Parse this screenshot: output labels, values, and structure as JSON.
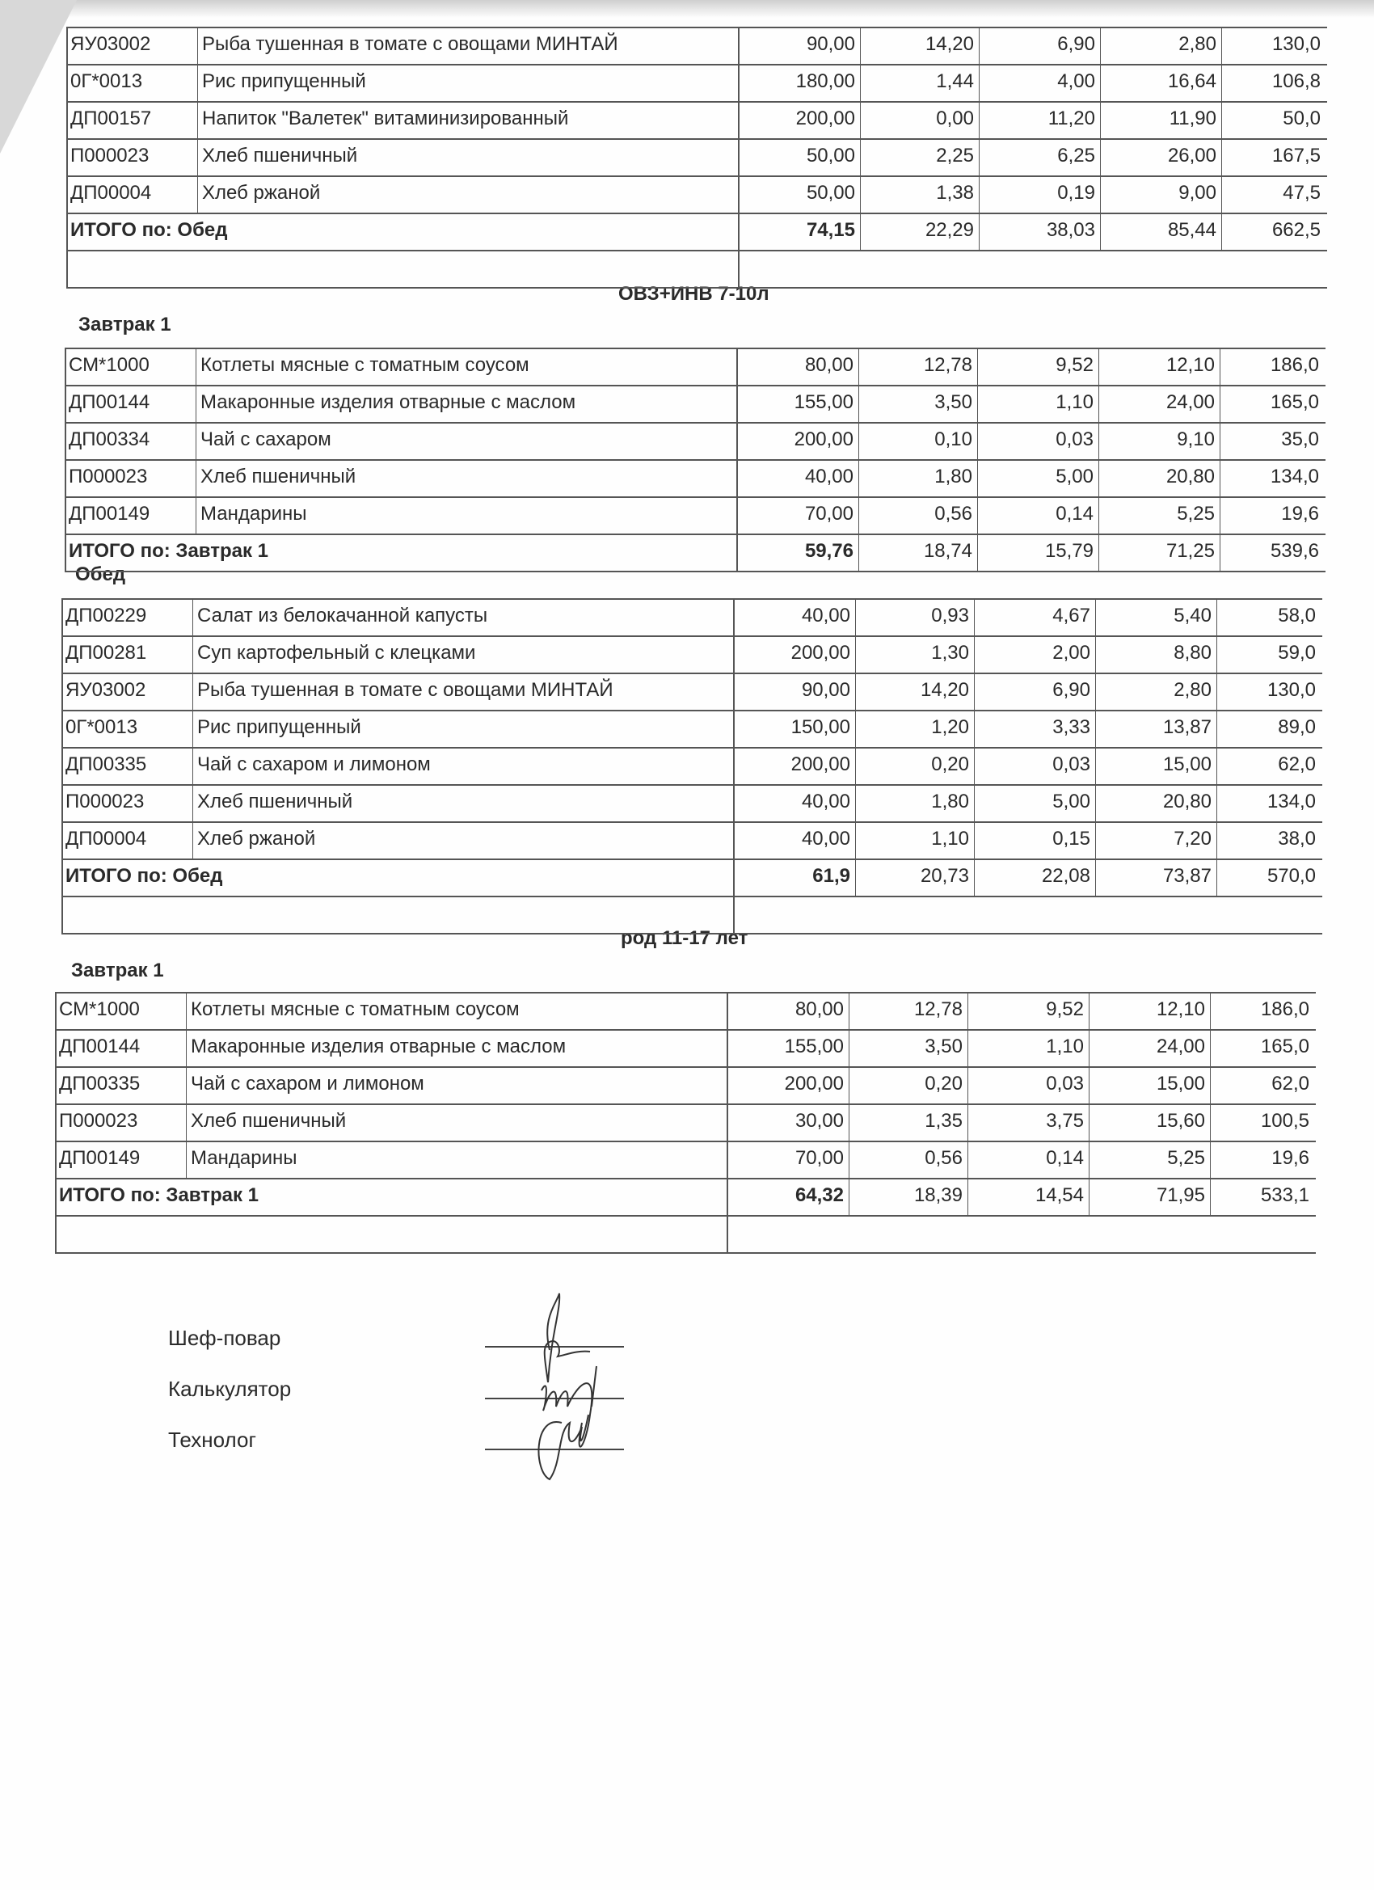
{
  "sections": [
    {
      "id": "t0",
      "rows": [
        {
          "code": "ЯУ03002",
          "name": "Рыба тушенная  в томате с овощами МИНТАЙ",
          "w": "90,00",
          "v1": "14,20",
          "v2": "6,90",
          "v3": "2,80",
          "v4": "130,0"
        },
        {
          "code": "0Г*0013",
          "name": "Рис припущенный",
          "w": "180,00",
          "v1": "1,44",
          "v2": "4,00",
          "v3": "16,64",
          "v4": "106,8"
        },
        {
          "code": "ДП00157",
          "name": "Напиток \"Валетек\" витаминизированный",
          "w": "200,00",
          "v1": "0,00",
          "v2": "11,20",
          "v3": "11,90",
          "v4": "50,0"
        },
        {
          "code": "П000023",
          "name": "Хлеб пшеничный",
          "w": "50,00",
          "v1": "2,25",
          "v2": "6,25",
          "v3": "26,00",
          "v4": "167,5"
        },
        {
          "code": "ДП00004",
          "name": "Хлеб ржаной",
          "w": "50,00",
          "v1": "1,38",
          "v2": "0,19",
          "v3": "9,00",
          "v4": "47,5"
        }
      ],
      "total": {
        "label": "ИТОГО по: Обед",
        "w": "74,15",
        "v1": "22,29",
        "v2": "38,03",
        "v3": "85,44",
        "v4": "662,5"
      },
      "empty_row": true
    },
    {
      "id": "t1",
      "group_title": "ОВЗ+ИНВ 7-10л",
      "meal_title": "Завтрак 1",
      "rows": [
        {
          "code": "СМ*1000",
          "name": "Котлеты мясные с томатным соусом",
          "w": "80,00",
          "v1": "12,78",
          "v2": "9,52",
          "v3": "12,10",
          "v4": "186,0"
        },
        {
          "code": "ДП00144",
          "name": "Макаронные изделия отварные с маслом",
          "w": "155,00",
          "v1": "3,50",
          "v2": "1,10",
          "v3": "24,00",
          "v4": "165,0"
        },
        {
          "code": "ДП00334",
          "name": "Чай с сахаром",
          "w": "200,00",
          "v1": "0,10",
          "v2": "0,03",
          "v3": "9,10",
          "v4": "35,0"
        },
        {
          "code": "П000023",
          "name": "Хлеб пшеничный",
          "w": "40,00",
          "v1": "1,80",
          "v2": "5,00",
          "v3": "20,80",
          "v4": "134,0"
        },
        {
          "code": "ДП00149",
          "name": "Мандарины",
          "w": "70,00",
          "v1": "0,56",
          "v2": "0,14",
          "v3": "5,25",
          "v4": "19,6"
        }
      ],
      "total": {
        "label": "ИТОГО по: Завтрак 1",
        "w": "59,76",
        "v1": "18,74",
        "v2": "15,79",
        "v3": "71,25",
        "v4": "539,6"
      },
      "empty_row": false
    },
    {
      "id": "t2",
      "meal_title": "Обед",
      "rows": [
        {
          "code": "ДП00229",
          "name": "Салат из белокачанной капусты",
          "w": "40,00",
          "v1": "0,93",
          "v2": "4,67",
          "v3": "5,40",
          "v4": "58,0"
        },
        {
          "code": "ДП00281",
          "name": "Суп картофельный с клецками",
          "w": "200,00",
          "v1": "1,30",
          "v2": "2,00",
          "v3": "8,80",
          "v4": "59,0"
        },
        {
          "code": "ЯУ03002",
          "name": "Рыба тушенная  в томате с овощами МИНТАЙ",
          "w": "90,00",
          "v1": "14,20",
          "v2": "6,90",
          "v3": "2,80",
          "v4": "130,0"
        },
        {
          "code": "0Г*0013",
          "name": "Рис припущенный",
          "w": "150,00",
          "v1": "1,20",
          "v2": "3,33",
          "v3": "13,87",
          "v4": "89,0"
        },
        {
          "code": "ДП00335",
          "name": "Чай с сахаром и  лимоном",
          "w": "200,00",
          "v1": "0,20",
          "v2": "0,03",
          "v3": "15,00",
          "v4": "62,0"
        },
        {
          "code": "П000023",
          "name": "Хлеб пшеничный",
          "w": "40,00",
          "v1": "1,80",
          "v2": "5,00",
          "v3": "20,80",
          "v4": "134,0"
        },
        {
          "code": "ДП00004",
          "name": "Хлеб ржаной",
          "w": "40,00",
          "v1": "1,10",
          "v2": "0,15",
          "v3": "7,20",
          "v4": "38,0"
        }
      ],
      "total": {
        "label": "ИТОГО по: Обед",
        "w": "61,9",
        "v1": "20,73",
        "v2": "22,08",
        "v3": "73,87",
        "v4": "570,0"
      },
      "empty_row": true
    },
    {
      "id": "t3",
      "group_title": "род 11-17 лет",
      "meal_title": "Завтрак 1",
      "rows": [
        {
          "code": "СМ*1000",
          "name": "Котлеты мясные с томатным соусом",
          "w": "80,00",
          "v1": "12,78",
          "v2": "9,52",
          "v3": "12,10",
          "v4": "186,0"
        },
        {
          "code": "ДП00144",
          "name": "Макаронные изделия отварные с маслом",
          "w": "155,00",
          "v1": "3,50",
          "v2": "1,10",
          "v3": "24,00",
          "v4": "165,0"
        },
        {
          "code": "ДП00335",
          "name": "Чай с сахаром и  лимоном",
          "w": "200,00",
          "v1": "0,20",
          "v2": "0,03",
          "v3": "15,00",
          "v4": "62,0"
        },
        {
          "code": "П000023",
          "name": "Хлеб пшеничный",
          "w": "30,00",
          "v1": "1,35",
          "v2": "3,75",
          "v3": "15,60",
          "v4": "100,5"
        },
        {
          "code": "ДП00149",
          "name": "Мандарины",
          "w": "70,00",
          "v1": "0,56",
          "v2": "0,14",
          "v3": "5,25",
          "v4": "19,6"
        }
      ],
      "total": {
        "label": "ИТОГО по: Завтрак 1",
        "w": "64,32",
        "v1": "18,39",
        "v2": "14,54",
        "v3": "71,95",
        "v4": "533,1"
      },
      "empty_row": true
    }
  ],
  "signatures": {
    "chef": "Шеф-повар",
    "calculator": "Калькулятор",
    "technologist": "Технолог"
  }
}
